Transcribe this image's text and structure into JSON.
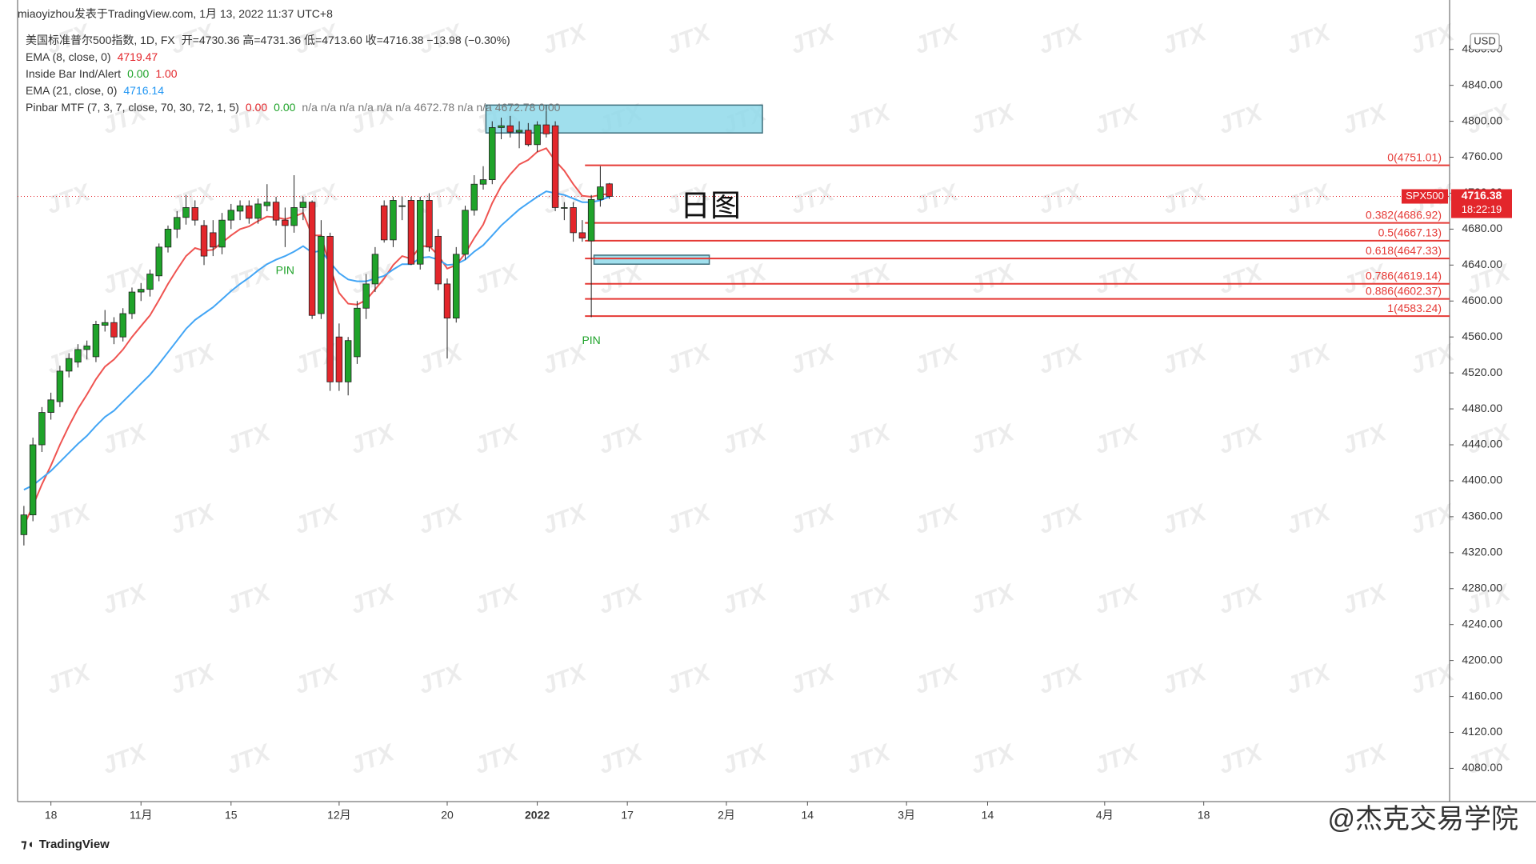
{
  "header": "miaoyizhou发表于TradingView.com, 1月 13, 2022 11:37 UTC+8",
  "chart_data": {
    "type": "candlestick",
    "symbol_line": "美国标准普尔500指数, 1D, FX",
    "ohlc_line": "开=4730.36 高=4731.36 低=4713.60 收=4716.38 −13.98 (−0.30%)",
    "up_color": "#1fa32a",
    "down_color": "#e3262b",
    "open": [
      4340,
      4362,
      4440,
      4476,
      4488,
      4522,
      4532,
      4546,
      4538,
      4573,
      4576,
      4560,
      4586,
      4610,
      4613,
      4628,
      4660,
      4680,
      4693,
      4704,
      4684,
      4676,
      4660,
      4690,
      4700,
      4706,
      4692,
      4706,
      4710,
      4690,
      4684,
      4704,
      4710,
      4586,
      4672,
      4560,
      4510,
      4538,
      4592,
      4619,
      4706,
      4668,
      4706,
      4712,
      4641,
      4712,
      4672,
      4619,
      4581,
      4652,
      4701,
      4730,
      4735,
      4793,
      4795,
      4788,
      4790,
      4774,
      4796,
      4795,
      4704,
      4704,
      4676,
      4667,
      4713,
      4730.36
    ],
    "high": [
      4372,
      4448,
      4482,
      4498,
      4528,
      4542,
      4552,
      4556,
      4578,
      4590,
      4582,
      4592,
      4615,
      4620,
      4635,
      4664,
      4684,
      4700,
      4718,
      4712,
      4690,
      4690,
      4698,
      4708,
      4712,
      4712,
      4714,
      4730,
      4716,
      4704,
      4740,
      4716,
      4712,
      4690,
      4676,
      4575,
      4560,
      4600,
      4630,
      4660,
      4712,
      4716,
      4716,
      4716,
      4716,
      4720,
      4680,
      4625,
      4660,
      4706,
      4740,
      4750,
      4800,
      4804,
      4806,
      4800,
      4798,
      4800,
      4818,
      4800,
      4710,
      4710,
      4690,
      4718,
      4750,
      4731.36
    ],
    "low": [
      4328,
      4355,
      4432,
      4468,
      4482,
      4515,
      4526,
      4535,
      4532,
      4566,
      4552,
      4555,
      4580,
      4600,
      4605,
      4622,
      4654,
      4670,
      4685,
      4684,
      4640,
      4650,
      4652,
      4680,
      4690,
      4686,
      4686,
      4700,
      4684,
      4660,
      4676,
      4690,
      4580,
      4580,
      4500,
      4500,
      4495,
      4530,
      4580,
      4610,
      4665,
      4660,
      4690,
      4640,
      4635,
      4655,
      4612,
      4536,
      4576,
      4646,
      4695,
      4724,
      4730,
      4780,
      4782,
      4770,
      4772,
      4766,
      4782,
      4700,
      4690,
      4666,
      4666,
      4582,
      4705,
      4713.6
    ],
    "close": [
      4362,
      4440,
      4476,
      4490,
      4522,
      4536,
      4546,
      4550,
      4574,
      4576,
      4560,
      4586,
      4610,
      4613,
      4630,
      4660,
      4680,
      4693,
      4704,
      4690,
      4650,
      4660,
      4690,
      4701,
      4706,
      4692,
      4708,
      4710,
      4690,
      4684,
      4704,
      4710,
      4584,
      4672,
      4510,
      4510,
      4556,
      4592,
      4619,
      4652,
      4668,
      4712,
      4706,
      4641,
      4712,
      4660,
      4619,
      4581,
      4652,
      4701,
      4730,
      4735,
      4793,
      4795,
      4788,
      4790,
      4774,
      4796,
      4786,
      4704,
      4704,
      4676,
      4670,
      4713,
      4727,
      4716.38
    ],
    "series": [
      {
        "name": "EMA (8, close, 0)",
        "color": "#ef5350",
        "values": [
          4350,
          4372,
          4396,
          4417,
          4440,
          4461,
          4480,
          4496,
          4513,
          4527,
          4535,
          4546,
          4560,
          4572,
          4584,
          4601,
          4619,
          4635,
          4650,
          4659,
          4656,
          4657,
          4665,
          4673,
          4680,
          4683,
          4689,
          4694,
          4693,
          4691,
          4694,
          4698,
          4673,
          4673,
          4637,
          4609,
          4597,
          4596,
          4601,
          4613,
          4625,
          4640,
          4650,
          4647,
          4661,
          4661,
          4651,
          4636,
          4640,
          4653,
          4670,
          4685,
          4709,
          4728,
          4741,
          4752,
          4757,
          4766,
          4770,
          4756,
          4745,
          4730,
          4717,
          4716,
          4718,
          4719.47
        ]
      },
      {
        "name": "EMA (21, close, 0)",
        "color": "#42a5f5",
        "values": [
          4390,
          4395,
          4403,
          4411,
          4421,
          4431,
          4441,
          4450,
          4461,
          4471,
          4478,
          4488,
          4498,
          4508,
          4518,
          4530,
          4543,
          4556,
          4569,
          4579,
          4586,
          4593,
          4602,
          4611,
          4619,
          4626,
          4634,
          4641,
          4646,
          4650,
          4655,
          4661,
          4654,
          4656,
          4643,
          4631,
          4624,
          4622,
          4622,
          4625,
          4628,
          4635,
          4641,
          4641,
          4648,
          4649,
          4646,
          4640,
          4641,
          4646,
          4655,
          4662,
          4673,
          4684,
          4693,
          4702,
          4709,
          4716,
          4722,
          4720,
          4718,
          4714,
          4710,
          4710,
          4712,
          4716.14
        ]
      }
    ],
    "indicators": [
      {
        "name": "Inside Bar Ind/Alert",
        "values": [
          "0.00",
          "1.00"
        ]
      },
      {
        "name": "Pinbar MTF (7, 3, 7, close, 70, 30, 72, 1, 5)",
        "values": [
          "0.00",
          "0.00"
        ],
        "extra": "n/a n/a n/a n/a n/a n/a 4672.78 n/a n/a 4672.78 0.00"
      }
    ],
    "xlim": [
      -0.7,
      158.3
    ],
    "xticks": [
      {
        "value": 3,
        "label": "18"
      },
      {
        "value": 13,
        "label": "11月"
      },
      {
        "value": 23,
        "label": "15"
      },
      {
        "value": 35,
        "label": "12月"
      },
      {
        "value": 47,
        "label": "20"
      },
      {
        "value": 57,
        "label": "2022"
      },
      {
        "value": 67,
        "label": "17"
      },
      {
        "value": 78,
        "label": "2月"
      },
      {
        "value": 87,
        "label": "14"
      },
      {
        "value": 98,
        "label": "3月"
      },
      {
        "value": 107,
        "label": "14"
      },
      {
        "value": 120,
        "label": "4月"
      },
      {
        "value": 131,
        "label": "18"
      }
    ],
    "ylim": [
      4043,
      4902
    ],
    "yticks": [
      {
        "value": 4080,
        "label": "4080.00"
      },
      {
        "value": 4120,
        "label": "4120.00"
      },
      {
        "value": 4160,
        "label": "4160.00"
      },
      {
        "value": 4200,
        "label": "4200.00"
      },
      {
        "value": 4240,
        "label": "4240.00"
      },
      {
        "value": 4280,
        "label": "4280.00"
      },
      {
        "value": 4320,
        "label": "4320.00"
      },
      {
        "value": 4360,
        "label": "4360.00"
      },
      {
        "value": 4400,
        "label": "4400.00"
      },
      {
        "value": 4440,
        "label": "4440.00"
      },
      {
        "value": 4480,
        "label": "4480.00"
      },
      {
        "value": 4520,
        "label": "4520.00"
      },
      {
        "value": 4560,
        "label": "4560.00"
      },
      {
        "value": 4600,
        "label": "4600.00"
      },
      {
        "value": 4640,
        "label": "4640.00"
      },
      {
        "value": 4680,
        "label": "4680.00"
      },
      {
        "value": 4720,
        "label": "4720.00"
      },
      {
        "value": 4760,
        "label": "4760.00"
      },
      {
        "value": 4800,
        "label": "4800.00"
      },
      {
        "value": 4840,
        "label": "4840.00"
      },
      {
        "value": 4880,
        "label": "4880.00"
      }
    ],
    "currency": "USD",
    "fib_color": "#e53935",
    "fib_levels": [
      {
        "value": 4751.01,
        "label": "0(4751.01)"
      },
      {
        "value": 4686.92,
        "label": "0.382(4686.92)"
      },
      {
        "value": 4667.13,
        "label": "0.5(4667.13)"
      },
      {
        "value": 4647.33,
        "label": "0.618(4647.33)"
      },
      {
        "value": 4619.14,
        "label": "0.786(4619.14)"
      },
      {
        "value": 4602.37,
        "label": "0.886(4602.37)"
      },
      {
        "value": 4583.24,
        "label": "1(4583.24)"
      }
    ],
    "zones": [
      {
        "top": 4818,
        "bottom": 4787
      },
      {
        "top": 4651,
        "bottom": 4641
      }
    ],
    "pin_markers": [
      {
        "index": 29,
        "label": "PIN"
      },
      {
        "index": 63,
        "label": "PIN"
      }
    ],
    "annotation": "日图",
    "price_tag": {
      "symbol": "SPX500",
      "countdown": "18:22:19"
    },
    "watermark": "JTX"
  },
  "footer": {
    "logo": "TradingView",
    "credit": "@杰克交易学院"
  }
}
